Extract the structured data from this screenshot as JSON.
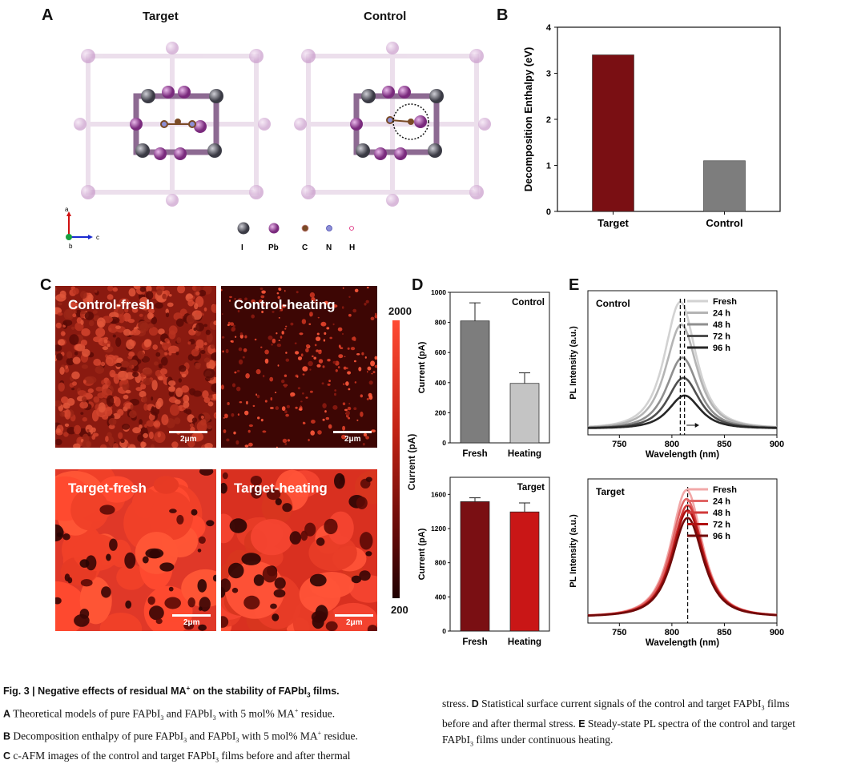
{
  "panels": {
    "A": "A",
    "B": "B",
    "C": "C",
    "D": "D",
    "E": "E"
  },
  "panelA": {
    "title_left": "Target",
    "title_right": "Control",
    "axes": {
      "a": "a",
      "b": "b",
      "c": "c"
    },
    "atoms": [
      {
        "label": "I",
        "color": "#6c6a80"
      },
      {
        "label": "Pb",
        "color": "#b04fb0"
      },
      {
        "label": "C",
        "color": "#7a4a26"
      },
      {
        "label": "N",
        "color": "#8d8fd6"
      },
      {
        "label": "H",
        "color": "#e8b7c8"
      }
    ]
  },
  "panelB": {
    "chart_data": {
      "type": "bar",
      "categories": [
        "Target",
        "Control"
      ],
      "values": [
        3.4,
        1.1
      ],
      "colors": [
        "#7a0f13",
        "#7d7d7d"
      ],
      "ylabel": "Decomposition Enthalpy (eV)",
      "ylim": [
        0,
        4
      ],
      "yticks": [
        "0",
        "1",
        "2",
        "3",
        "4"
      ]
    }
  },
  "panelC": {
    "images": [
      {
        "label": "Control-fresh",
        "scale": "2μm"
      },
      {
        "label": "Control-heating",
        "scale": "2μm"
      },
      {
        "label": "Target-fresh",
        "scale": "2μm"
      },
      {
        "label": "Target-heating",
        "scale": "2μm"
      }
    ],
    "colorbar": {
      "max": "2000",
      "min": "200",
      "label": "Current (pA)"
    }
  },
  "panelD": {
    "chart_data": [
      {
        "type": "bar",
        "title": "Control",
        "categories": [
          "Fresh",
          "Heating"
        ],
        "values": [
          810,
          395
        ],
        "errors": [
          120,
          70
        ],
        "colors": [
          "#7d7d7d",
          "#c4c4c4"
        ],
        "ylabel": "Current (pA)",
        "ylim": [
          0,
          1000
        ],
        "yticks": [
          "0",
          "200",
          "400",
          "600",
          "800",
          "1000"
        ]
      },
      {
        "type": "bar",
        "title": "Target",
        "categories": [
          "Fresh",
          "Heating"
        ],
        "values": [
          1515,
          1395
        ],
        "errors": [
          45,
          105
        ],
        "colors": [
          "#7a0f13",
          "#c91616"
        ],
        "ylabel": "Current (pA)",
        "ylim": [
          0,
          1800
        ],
        "yticks": [
          "0",
          "400",
          "800",
          "1200",
          "1600"
        ]
      }
    ]
  },
  "panelE": {
    "chart_data": [
      {
        "type": "line",
        "title": "Control",
        "xlabel": "Wavelength (nm)",
        "ylabel": "PL Intensity (a.u.)",
        "xlim": [
          720,
          900
        ],
        "xticks": [
          "750",
          "800",
          "850",
          "900"
        ],
        "series": [
          {
            "name": "Fresh",
            "center": 808,
            "peak": 1.0,
            "color": "#d2d2d2"
          },
          {
            "name": "24 h",
            "center": 809,
            "peak": 0.82,
            "color": "#b4b4b4"
          },
          {
            "name": "48 h",
            "center": 810,
            "peak": 0.56,
            "color": "#8f8f8f"
          },
          {
            "name": "72 h",
            "center": 811,
            "peak": 0.4,
            "color": "#4f4f4f"
          },
          {
            "name": "96 h",
            "center": 812,
            "peak": 0.26,
            "color": "#262626"
          }
        ]
      },
      {
        "type": "line",
        "title": "Target",
        "xlabel": "Wavelength (nm)",
        "ylabel": "PL Intensity (a.u.)",
        "xlim": [
          720,
          900
        ],
        "xticks": [
          "750",
          "800",
          "850",
          "900"
        ],
        "series": [
          {
            "name": "Fresh",
            "center": 814,
            "peak": 1.0,
            "color": "#f2a8a8"
          },
          {
            "name": "24 h",
            "center": 814,
            "peak": 0.93,
            "color": "#e06666"
          },
          {
            "name": "48 h",
            "center": 815,
            "peak": 0.88,
            "color": "#d13a3a"
          },
          {
            "name": "72 h",
            "center": 815,
            "peak": 0.84,
            "color": "#b01010"
          },
          {
            "name": "96 h",
            "center": 815,
            "peak": 0.78,
            "color": "#700a0a"
          }
        ]
      }
    ]
  },
  "caption": {
    "fig": "Fig. 3 | Negative effects of residual MA",
    "fig2": " on the stability of FAPbI",
    "fig3": " films.",
    "lineA": "Theoretical models of pure FAPbI",
    "lineA2": " and FAPbI",
    "lineA3": " with 5 mol% MA",
    "lineA4": " residue.",
    "lineB": "Decomposition enthalpy of pure FAPbI",
    "lineB2": " and FAPbI",
    "lineB3": " with 5 mol% MA",
    "lineB4": " residue.",
    "lineC": "c-AFM images of the control and target FAPbI",
    "lineC2": " films before and after thermal",
    "right1": "stress. ",
    "right1b": "Statistical surface current signals of the control and target FAPbI",
    "right1c": " films",
    "right2": "before and after thermal stress. ",
    "right2b": "Steady-state PL spectra of the control and target",
    "right3": "FAPbI",
    "right3b": " films under continuous heating.",
    "sub3": "3",
    "sup": "+"
  }
}
